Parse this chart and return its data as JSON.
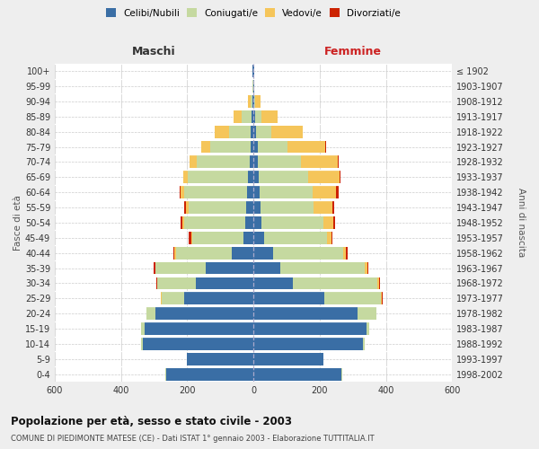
{
  "age_groups": [
    "0-4",
    "5-9",
    "10-14",
    "15-19",
    "20-24",
    "25-29",
    "30-34",
    "35-39",
    "40-44",
    "45-49",
    "50-54",
    "55-59",
    "60-64",
    "65-69",
    "70-74",
    "75-79",
    "80-84",
    "85-89",
    "90-94",
    "95-99",
    "100+"
  ],
  "birth_years": [
    "1998-2002",
    "1993-1997",
    "1988-1992",
    "1983-1987",
    "1978-1982",
    "1973-1977",
    "1968-1972",
    "1963-1967",
    "1958-1962",
    "1953-1957",
    "1948-1952",
    "1943-1947",
    "1938-1942",
    "1933-1937",
    "1928-1932",
    "1923-1927",
    "1918-1922",
    "1913-1917",
    "1908-1912",
    "1903-1907",
    "≤ 1902"
  ],
  "male_celibe": [
    265,
    200,
    335,
    330,
    295,
    210,
    175,
    145,
    65,
    30,
    25,
    22,
    20,
    18,
    12,
    10,
    8,
    5,
    3,
    1,
    2
  ],
  "male_coniugato": [
    2,
    2,
    5,
    10,
    28,
    68,
    115,
    150,
    170,
    155,
    185,
    175,
    190,
    180,
    160,
    120,
    65,
    30,
    5,
    1,
    0
  ],
  "male_vedovo": [
    0,
    0,
    0,
    0,
    0,
    1,
    1,
    2,
    3,
    4,
    5,
    8,
    10,
    13,
    20,
    28,
    45,
    25,
    8,
    1,
    0
  ],
  "male_divorziato": [
    0,
    0,
    0,
    0,
    1,
    2,
    3,
    5,
    5,
    8,
    6,
    5,
    4,
    2,
    0,
    0,
    0,
    0,
    0,
    0,
    0
  ],
  "female_celibe": [
    265,
    210,
    330,
    340,
    315,
    215,
    120,
    80,
    60,
    32,
    25,
    20,
    18,
    15,
    14,
    12,
    8,
    5,
    3,
    1,
    2
  ],
  "female_coniugata": [
    2,
    2,
    5,
    10,
    55,
    170,
    255,
    255,
    210,
    190,
    185,
    160,
    160,
    150,
    130,
    90,
    45,
    18,
    3,
    0,
    0
  ],
  "female_vedova": [
    0,
    0,
    0,
    0,
    1,
    3,
    5,
    8,
    10,
    14,
    32,
    58,
    70,
    95,
    110,
    115,
    95,
    50,
    15,
    2,
    0
  ],
  "female_divorziata": [
    0,
    0,
    0,
    0,
    1,
    2,
    2,
    3,
    3,
    3,
    5,
    5,
    8,
    3,
    2,
    1,
    1,
    0,
    0,
    0,
    0
  ],
  "color_celibe": "#3a6ea5",
  "color_coniugato": "#c5d9a0",
  "color_vedovo": "#f5c55a",
  "color_divorziato": "#cc2200",
  "xlim": 600,
  "title": "Popolazione per età, sesso e stato civile - 2003",
  "subtitle": "COMUNE DI PIEDIMONTE MATESE (CE) - Dati ISTAT 1° gennaio 2003 - Elaborazione TUTTITALIA.IT",
  "ylabel_left": "Fasce di età",
  "ylabel_right": "Anni di nascita",
  "xlabel_male": "Maschi",
  "xlabel_female": "Femmine",
  "bg_color": "#eeeeee",
  "plot_bg_color": "#ffffff",
  "legend_labels": [
    "Celibi/Nubili",
    "Coniugati/e",
    "Vedovi/e",
    "Divorziati/e"
  ]
}
